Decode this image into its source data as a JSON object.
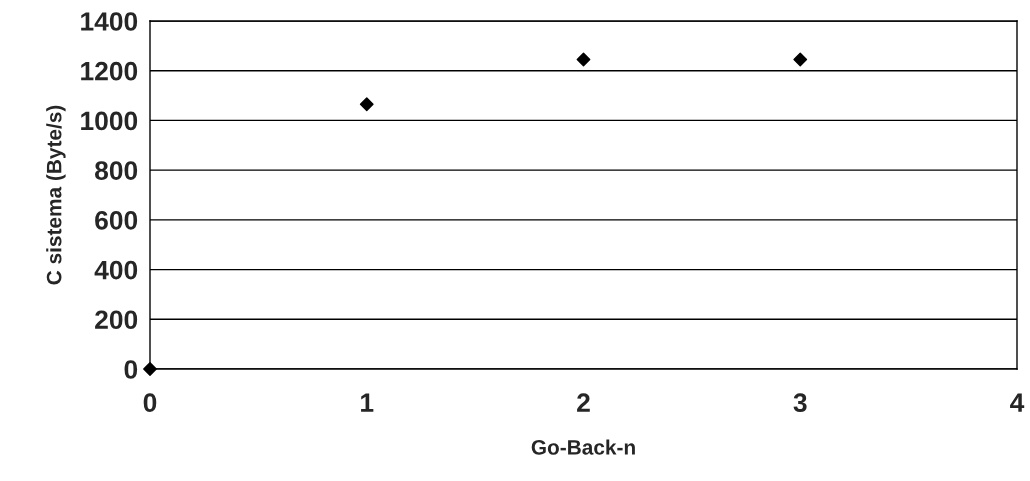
{
  "chart_data": {
    "type": "scatter",
    "xlabel": "Go-Back-n",
    "ylabel": "C sistema (Byte/s)",
    "x": [
      0,
      1,
      2,
      3
    ],
    "series": [
      {
        "color": "#000000",
        "values": [
          0,
          1065,
          1245,
          1245
        ]
      }
    ],
    "xlim": [
      0,
      4
    ],
    "xticks": [
      0,
      1,
      2,
      3,
      4
    ],
    "ylim": [
      0,
      1400
    ],
    "yticks": [
      0,
      200,
      400,
      600,
      800,
      1000,
      1200,
      1400
    ],
    "grid": "y",
    "marker": "diamond",
    "legend": false
  }
}
